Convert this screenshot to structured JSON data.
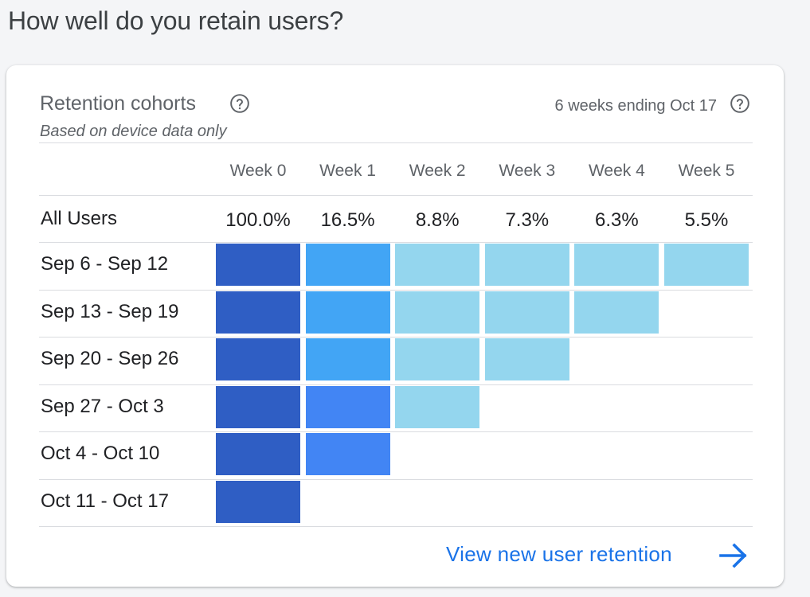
{
  "page": {
    "heading": "How well do you retain users?"
  },
  "card": {
    "title": "Retention cohorts",
    "subtitle": "Based on device data only",
    "date_range": "6 weeks ending Oct 17",
    "help_icon": "help-circle-icon",
    "footer_link": "View new user retention",
    "footer_icon": "arrow-right-icon"
  },
  "colors": {
    "level_100": "#2f5ec4",
    "level_high": "#42a5f5",
    "level_high_alt": "#4285f4",
    "level_low": "#94d6ee",
    "link": "#1a73e8"
  },
  "chart_data": {
    "type": "heatmap",
    "columns": [
      "Week 0",
      "Week 1",
      "Week 2",
      "Week 3",
      "Week 4",
      "Week 5"
    ],
    "all_users": {
      "label": "All Users",
      "values": [
        "100.0%",
        "16.5%",
        "8.8%",
        "7.3%",
        "6.3%",
        "5.5%"
      ]
    },
    "rows": [
      {
        "label": "Sep 6 - Sep 12",
        "levels": [
          "level_100",
          "level_high",
          "level_low",
          "level_low",
          "level_low",
          "level_low"
        ]
      },
      {
        "label": "Sep 13 - Sep 19",
        "levels": [
          "level_100",
          "level_high",
          "level_low",
          "level_low",
          "level_low"
        ]
      },
      {
        "label": "Sep 20 - Sep 26",
        "levels": [
          "level_100",
          "level_high",
          "level_low",
          "level_low"
        ]
      },
      {
        "label": "Sep 27 - Oct 3",
        "levels": [
          "level_100",
          "level_high_alt",
          "level_low"
        ]
      },
      {
        "label": "Oct 4 - Oct 10",
        "levels": [
          "level_100",
          "level_high_alt"
        ]
      },
      {
        "label": "Oct 11 - Oct 17",
        "levels": [
          "level_100"
        ]
      }
    ]
  }
}
